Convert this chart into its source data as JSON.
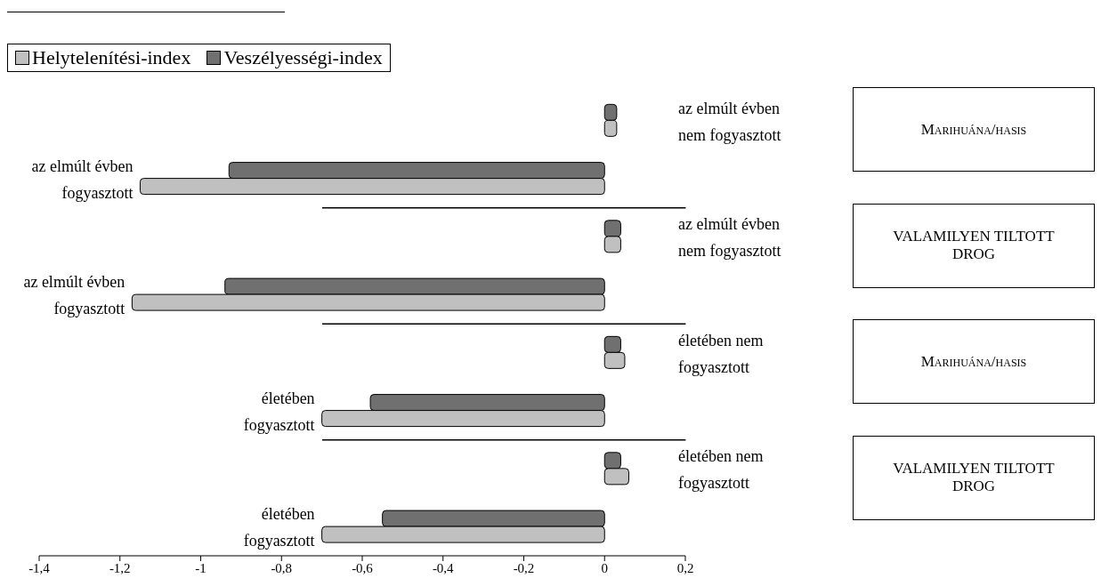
{
  "chart_data": {
    "type": "bar",
    "orientation": "horizontal",
    "categories": [
      "az elmúlt évben nem fogyasztott",
      "az elmúlt évben fogyasztott",
      "az elmúlt évben nem fogyasztott",
      "az elmúlt évben fogyasztott",
      "életében nem fogyasztott",
      "életében fogyasztott",
      "életében nem fogyasztott",
      "életében fogyasztott"
    ],
    "series": [
      {
        "name": "Veszélyességi-index",
        "color": "#707070",
        "values": [
          0.03,
          -0.93,
          0.04,
          -0.94,
          0.04,
          -0.58,
          0.04,
          -0.55
        ]
      },
      {
        "name": "Helytelenítési-index",
        "color": "#c0c0c0",
        "values": [
          0.03,
          -1.15,
          0.04,
          -1.17,
          0.05,
          -0.7,
          0.06,
          -0.7
        ]
      }
    ],
    "xlim": [
      -1.4,
      0.2
    ],
    "xticks": [
      {
        "value": -1.4,
        "label": "-1,4"
      },
      {
        "value": -1.2,
        "label": "-1,2"
      },
      -1,
      {
        "value": -0.8,
        "label": "-0,8"
      },
      {
        "value": -0.6,
        "label": "-0,6"
      },
      {
        "value": -0.4,
        "label": "-0,4"
      },
      {
        "value": -0.2,
        "label": "-0,2"
      },
      0,
      {
        "value": 0.2,
        "label": "0,2"
      }
    ],
    "grid": false,
    "legend": "top left",
    "annotations": [
      "Marihuána/hasis",
      "VALAMILYEN TILTOTT DROG",
      "Marihuána/hasis",
      "VALAMILYEN TILTOTT DROG"
    ]
  }
}
